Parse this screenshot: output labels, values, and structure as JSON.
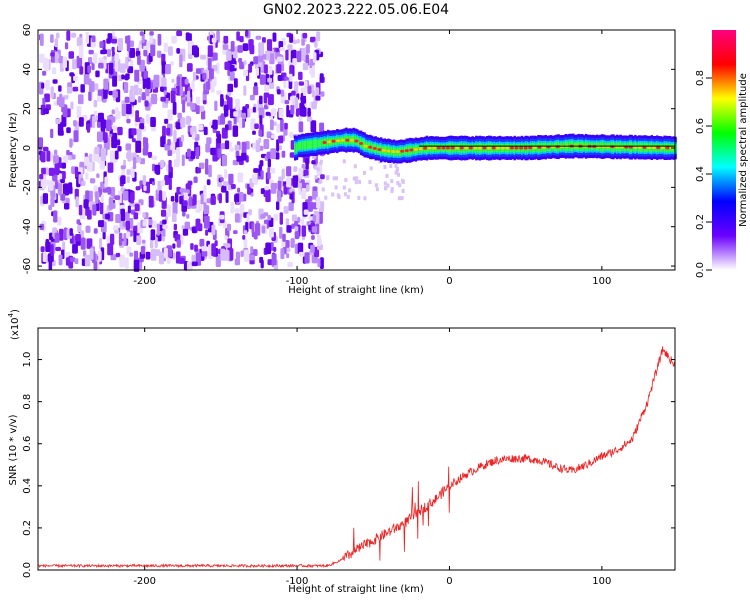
{
  "title": "GN02.2023.222.05.06.E04",
  "chart_data": [
    {
      "type": "heatmap",
      "xlabel": "Height of straight line (km)",
      "ylabel": "Frequency (Hz)",
      "xlim": [
        -270,
        148
      ],
      "ylim": [
        -62,
        60
      ],
      "x_ticks": [
        -200,
        -100,
        0,
        100
      ],
      "y_ticks": [
        -60,
        -40,
        -20,
        0,
        20,
        40,
        60
      ],
      "x_tick_labels": [
        "-200",
        "-100",
        "0",
        "100"
      ],
      "y_tick_labels": [
        "-60",
        "-40",
        "-20",
        "0",
        "20",
        "40",
        "60"
      ],
      "noise_region_x": [
        -270,
        -82
      ],
      "signal_start_x": -102,
      "signal_ridge": [
        {
          "x": -100,
          "y": 1
        },
        {
          "x": -90,
          "y": 2
        },
        {
          "x": -80,
          "y": 3
        },
        {
          "x": -70,
          "y": 4
        },
        {
          "x": -62,
          "y": 4
        },
        {
          "x": -55,
          "y": 1
        },
        {
          "x": -45,
          "y": -1
        },
        {
          "x": -35,
          "y": -2
        },
        {
          "x": -25,
          "y": -1
        },
        {
          "x": -15,
          "y": 0
        },
        {
          "x": 0,
          "y": 0
        },
        {
          "x": 50,
          "y": 0
        },
        {
          "x": 80,
          "y": 1
        },
        {
          "x": 148,
          "y": 0
        }
      ],
      "colorbar": {
        "label": "Normalized spectral amplitude",
        "ticks": [
          0.0,
          0.2,
          0.4,
          0.6,
          0.8
        ],
        "tick_labels": [
          "0.0",
          "0.2",
          "0.4",
          "0.6",
          "0.8"
        ],
        "range": [
          0,
          1
        ],
        "colors": [
          "#ffffff",
          "#6a00ff",
          "#0000ff",
          "#00ffff",
          "#00ff00",
          "#ffff00",
          "#ff0000",
          "#ff0080"
        ]
      }
    },
    {
      "type": "line",
      "xlabel": "Height of straight line (km)",
      "ylabel": "SNR (10 * v/v)",
      "y_multiplier": "(x10",
      "y_multiplier_exp": "4",
      "y_multiplier_close": ")",
      "xlim": [
        -270,
        148
      ],
      "ylim": [
        0,
        1.15
      ],
      "x_ticks": [
        -200,
        -100,
        0,
        100
      ],
      "y_ticks": [
        0.0,
        0.2,
        0.4,
        0.6,
        0.8,
        1.0
      ],
      "x_tick_labels": [
        "-200",
        "-100",
        "0",
        "100"
      ],
      "y_tick_labels": [
        "0.0",
        "0.2",
        "0.4",
        "0.6",
        "0.8",
        "1.0"
      ],
      "series": [
        {
          "color": "#ee2222",
          "x": [
            -270,
            -250,
            -200,
            -150,
            -100,
            -80,
            -70,
            -60,
            -50,
            -40,
            -30,
            -20,
            -10,
            0,
            10,
            20,
            30,
            40,
            50,
            60,
            70,
            80,
            90,
            100,
            110,
            120,
            130,
            140,
            148
          ],
          "y": [
            0.02,
            0.02,
            0.02,
            0.02,
            0.02,
            0.02,
            0.05,
            0.1,
            0.14,
            0.18,
            0.22,
            0.28,
            0.33,
            0.4,
            0.45,
            0.49,
            0.52,
            0.53,
            0.53,
            0.52,
            0.49,
            0.47,
            0.5,
            0.54,
            0.57,
            0.62,
            0.8,
            1.05,
            0.97
          ]
        }
      ]
    }
  ]
}
